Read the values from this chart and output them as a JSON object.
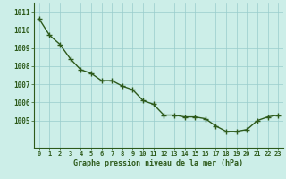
{
  "x": [
    0,
    1,
    2,
    3,
    4,
    5,
    6,
    7,
    8,
    9,
    10,
    11,
    12,
    13,
    14,
    15,
    16,
    17,
    18,
    19,
    20,
    21,
    22,
    23
  ],
  "y": [
    1010.6,
    1009.7,
    1009.2,
    1008.4,
    1007.8,
    1007.6,
    1007.2,
    1007.2,
    1006.9,
    1006.7,
    1006.1,
    1005.9,
    1005.3,
    1005.3,
    1005.2,
    1005.2,
    1005.1,
    1004.7,
    1004.4,
    1004.4,
    1004.5,
    1005.0,
    1005.2,
    1005.3
  ],
  "line_color": "#2d5a1b",
  "marker": "+",
  "marker_size": 4,
  "background_color": "#cceee8",
  "grid_color": "#99cccc",
  "xlabel": "Graphe pression niveau de la mer (hPa)",
  "xlabel_color": "#2d5a1b",
  "tick_color": "#2d5a1b",
  "ylim": [
    1003.5,
    1011.5
  ],
  "yticks": [
    1005,
    1006,
    1007,
    1008,
    1009,
    1010,
    1011
  ],
  "xlim": [
    -0.5,
    23.5
  ]
}
